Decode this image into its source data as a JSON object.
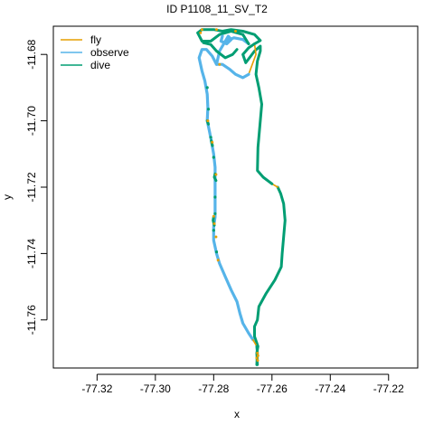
{
  "chart_data": {
    "type": "line",
    "title": "ID P1108_11_SV_T2",
    "xlabel": "x",
    "ylabel": "y",
    "xlim": [
      -77.335,
      -77.21
    ],
    "ylim": [
      -11.7745,
      -11.6715
    ],
    "x_ticks": [
      -77.32,
      -77.3,
      -77.28,
      -77.26,
      -77.24,
      -77.22
    ],
    "y_ticks": [
      -11.68,
      -11.7,
      -11.72,
      -11.74,
      -11.76
    ],
    "x_tick_labels": [
      "-77.32",
      "-77.30",
      "-77.28",
      "-77.26",
      "-77.24",
      "-77.22"
    ],
    "y_tick_labels": [
      "-11.68",
      "-11.70",
      "-11.72",
      "-11.74",
      "-11.76"
    ],
    "grid": false,
    "legend_position": "top-left",
    "series": [
      {
        "name": "fly",
        "color": "#E69F00"
      },
      {
        "name": "observe",
        "color": "#56B4E9"
      },
      {
        "name": "dive",
        "color": "#009E73"
      }
    ],
    "track": [
      {
        "behavior": "dive",
        "points": [
          [
            -77.265,
            -11.7735
          ],
          [
            -77.2652,
            -11.77
          ],
          [
            -77.2648,
            -11.768
          ],
          [
            -77.266,
            -11.765
          ],
          [
            -77.266,
            -11.762
          ],
          [
            -77.265,
            -11.76
          ],
          [
            -77.2645,
            -11.756
          ],
          [
            -77.262,
            -11.752
          ],
          [
            -77.259,
            -11.748
          ],
          [
            -77.2568,
            -11.744
          ],
          [
            -77.2565,
            -11.74
          ],
          [
            -77.256,
            -11.735
          ],
          [
            -77.2555,
            -11.73
          ],
          [
            -77.256,
            -11.725
          ],
          [
            -77.257,
            -11.722
          ],
          [
            -77.258,
            -11.72
          ]
        ]
      },
      {
        "behavior": "fly",
        "points": [
          [
            -77.258,
            -11.72
          ],
          [
            -77.26,
            -11.719
          ]
        ]
      },
      {
        "behavior": "dive",
        "points": [
          [
            -77.26,
            -11.719
          ],
          [
            -77.263,
            -11.717
          ],
          [
            -77.265,
            -11.715
          ],
          [
            -77.2648,
            -11.708
          ],
          [
            -77.264,
            -11.7
          ],
          [
            -77.2635,
            -11.695
          ],
          [
            -77.2645,
            -11.69
          ],
          [
            -77.2655,
            -11.686
          ],
          [
            -77.265,
            -11.682
          ],
          [
            -77.264,
            -11.679
          ],
          [
            -77.264,
            -11.6775
          ],
          [
            -77.266,
            -11.679
          ],
          [
            -77.269,
            -11.6825
          ],
          [
            -77.27,
            -11.68
          ],
          [
            -77.268,
            -11.678
          ],
          [
            -77.266,
            -11.6768
          ]
        ]
      },
      {
        "behavior": "fly",
        "points": [
          [
            -77.266,
            -11.6768
          ],
          [
            -77.2655,
            -11.68
          ],
          [
            -77.268,
            -11.686
          ]
        ]
      },
      {
        "behavior": "observe",
        "points": [
          [
            -77.268,
            -11.686
          ],
          [
            -77.27,
            -11.687
          ],
          [
            -77.2725,
            -11.686
          ],
          [
            -77.2745,
            -11.6845
          ],
          [
            -77.277,
            -11.683
          ],
          [
            -77.279,
            -11.683
          ],
          [
            -77.2805,
            -11.6805
          ],
          [
            -77.2825,
            -11.6785
          ],
          [
            -77.284,
            -11.6785
          ],
          [
            -77.285,
            -11.681
          ],
          [
            -77.284,
            -11.685
          ],
          [
            -77.283,
            -11.688
          ],
          [
            -77.2822,
            -11.692
          ],
          [
            -77.282,
            -11.696
          ],
          [
            -77.2822,
            -11.7
          ],
          [
            -77.2815,
            -11.703
          ],
          [
            -77.2808,
            -11.706
          ],
          [
            -77.28,
            -11.71
          ],
          [
            -77.2795,
            -11.714
          ],
          [
            -77.2795,
            -11.719
          ],
          [
            -77.2795,
            -11.724
          ],
          [
            -77.2795,
            -11.729
          ],
          [
            -77.28,
            -11.732
          ],
          [
            -77.28,
            -11.736
          ],
          [
            -77.279,
            -11.74
          ],
          [
            -77.278,
            -11.743
          ],
          [
            -77.276,
            -11.747
          ],
          [
            -77.274,
            -11.751
          ],
          [
            -77.272,
            -11.7545
          ],
          [
            -77.271,
            -11.758
          ],
          [
            -77.27,
            -11.761
          ],
          [
            -77.268,
            -11.764
          ],
          [
            -77.2665,
            -11.766
          ]
        ]
      },
      {
        "behavior": "fly",
        "points": [
          [
            -77.2665,
            -11.766
          ],
          [
            -77.2652,
            -11.768
          ]
        ]
      },
      {
        "behavior": "dive",
        "points": [
          [
            -77.2652,
            -11.768
          ],
          [
            -77.265,
            -11.77
          ],
          [
            -77.2652,
            -11.7735
          ]
        ]
      },
      {
        "behavior": "observe",
        "points": [
          [
            -77.279,
            -11.683
          ],
          [
            -77.278,
            -11.679
          ],
          [
            -77.276,
            -11.676
          ],
          [
            -77.273,
            -11.675
          ],
          [
            -77.27,
            -11.6755
          ],
          [
            -77.268,
            -11.6768
          ]
        ]
      },
      {
        "behavior": "dive",
        "points": [
          [
            -77.268,
            -11.6768
          ],
          [
            -77.27,
            -11.674
          ],
          [
            -77.274,
            -11.673
          ],
          [
            -77.278,
            -11.674
          ],
          [
            -77.281,
            -11.676
          ],
          [
            -77.284,
            -11.676
          ],
          [
            -77.2855,
            -11.6735
          ],
          [
            -77.284,
            -11.6725
          ],
          [
            -77.28,
            -11.6725
          ],
          [
            -77.277,
            -11.673
          ],
          [
            -77.274,
            -11.6725
          ],
          [
            -77.27,
            -11.673
          ],
          [
            -77.266,
            -11.674
          ],
          [
            -77.264,
            -11.6758
          ],
          [
            -77.266,
            -11.6768
          ]
        ]
      },
      {
        "behavior": "observe",
        "points": [
          [
            -77.276,
            -11.676
          ],
          [
            -77.275,
            -11.6745
          ],
          [
            -77.274,
            -11.6755
          ],
          [
            -77.2755,
            -11.6768
          ],
          [
            -77.2775,
            -11.676
          ],
          [
            -77.277,
            -11.6745
          ]
        ]
      },
      {
        "behavior": "dive",
        "points": [
          [
            -77.272,
            -11.6785
          ],
          [
            -77.2735,
            -11.68
          ],
          [
            -77.276,
            -11.681
          ],
          [
            -77.279,
            -11.679
          ],
          [
            -77.281,
            -11.677
          ],
          [
            -77.2835,
            -11.6765
          ]
        ]
      },
      {
        "behavior": "dive",
        "points": [
          [
            -77.2795,
            -11.716
          ],
          [
            -77.2798,
            -11.717
          ],
          [
            -77.2792,
            -11.718
          ]
        ]
      },
      {
        "behavior": "dive",
        "points": [
          [
            -77.28,
            -11.729
          ],
          [
            -77.2802,
            -11.73
          ],
          [
            -77.2798,
            -11.7315
          ]
        ]
      },
      {
        "behavior": "dive",
        "points": [
          [
            -77.2822,
            -11.7
          ],
          [
            -77.2818,
            -11.701
          ]
        ]
      },
      {
        "behavior": "dive",
        "points": [
          [
            -77.2808,
            -11.706
          ],
          [
            -77.2804,
            -11.7075
          ]
        ]
      }
    ],
    "fly_marks": [
      [
        -77.2845,
        -11.6735
      ],
      [
        -77.284,
        -11.6725
      ],
      [
        -77.279,
        -11.6725
      ],
      [
        -77.2725,
        -11.673
      ],
      [
        -77.278,
        -11.683
      ],
      [
        -77.282,
        -11.7
      ],
      [
        -77.2805,
        -11.7065
      ],
      [
        -77.2792,
        -11.7162
      ],
      [
        -77.28,
        -11.7288
      ],
      [
        -77.2798,
        -11.731
      ],
      [
        -77.2792,
        -11.735
      ],
      [
        -77.2785,
        -11.742
      ],
      [
        -77.265,
        -11.77
      ],
      [
        -77.2648,
        -11.7708
      ],
      [
        -77.2652,
        -11.7715
      ],
      [
        -77.2649,
        -11.7722
      ]
    ],
    "dive_marks": [
      [
        -77.2822,
        -11.69
      ],
      [
        -77.2818,
        -11.6965
      ],
      [
        -77.281,
        -11.705
      ],
      [
        -77.28,
        -11.711
      ],
      [
        -77.2795,
        -11.723
      ],
      [
        -77.2795,
        -11.728
      ],
      [
        -77.28,
        -11.733
      ],
      [
        -77.279,
        -11.7395
      ]
    ]
  }
}
